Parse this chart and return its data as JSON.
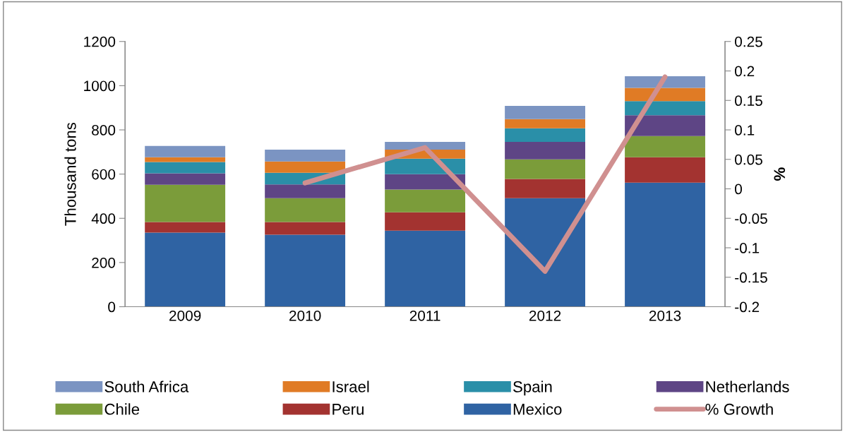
{
  "chart_data": {
    "type": "bar",
    "stacked": true,
    "ylabel": "Thousand tons",
    "y2label": "%",
    "categories": [
      "2009",
      "2010",
      "2011",
      "2012",
      "2013"
    ],
    "series": [
      {
        "name": "Mexico",
        "color": "#2f63a3",
        "values": [
          335,
          326,
          344,
          491,
          561
        ]
      },
      {
        "name": "Peru",
        "color": "#a33330",
        "values": [
          48,
          57,
          83,
          87,
          115
        ]
      },
      {
        "name": "Chile",
        "color": "#7b9c3a",
        "values": [
          169,
          108,
          103,
          89,
          96
        ]
      },
      {
        "name": "Netherlands",
        "color": "#5e4585",
        "values": [
          52,
          62,
          70,
          79,
          94
        ]
      },
      {
        "name": "Spain",
        "color": "#2a8fa8",
        "values": [
          51,
          53,
          70,
          61,
          64
        ]
      },
      {
        "name": "Israel",
        "color": "#e07b25",
        "values": [
          21,
          51,
          41,
          42,
          60
        ]
      },
      {
        "name": "South Africa",
        "color": "#7b94c2",
        "values": [
          51,
          54,
          35,
          60,
          53
        ]
      },
      {
        "name": "% Growth",
        "type": "line",
        "axis": "y2",
        "color": "#d09090",
        "values": [
          null,
          0.01,
          0.07,
          -0.14,
          0.19
        ]
      }
    ],
    "ylim": [
      0,
      1200
    ],
    "yticks": [
      0,
      200,
      400,
      600,
      800,
      1000,
      1200
    ],
    "y2lim": [
      -0.2,
      0.25
    ],
    "y2ticks": [
      {
        "value": -0.2,
        "label": "-0.2"
      },
      {
        "value": -0.15,
        "label": "-0.15"
      },
      {
        "value": -0.1,
        "label": "-0.1"
      },
      {
        "value": -0.05,
        "label": "-0.05"
      },
      {
        "value": 0,
        "label": "0"
      },
      {
        "value": 0.05,
        "label": "0.05"
      },
      {
        "value": 0.1,
        "label": "0.1"
      },
      {
        "value": 0.15,
        "label": "0.15"
      },
      {
        "value": 0.2,
        "label": "0.2"
      },
      {
        "value": 0.25,
        "label": "0.25"
      }
    ],
    "grid": false,
    "legend": "bottom"
  }
}
